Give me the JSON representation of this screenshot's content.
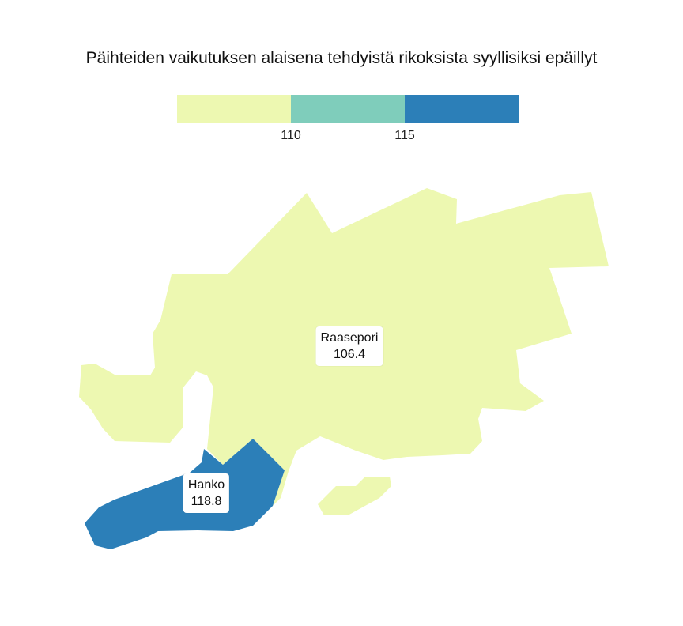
{
  "title": "Päihteiden vaikutuksen alaisena tehdyistä rikoksista syyllisiksi epäillyt",
  "legend": {
    "colors": [
      "#edf8b1",
      "#7fcdbb",
      "#2c7fb8"
    ],
    "breaks": [
      "110",
      "115"
    ]
  },
  "regions": [
    {
      "name": "Raasepori",
      "value": "106.4",
      "color": "#edf8b1"
    },
    {
      "name": "Hanko",
      "value": "118.8",
      "color": "#2c7fb8"
    }
  ]
}
